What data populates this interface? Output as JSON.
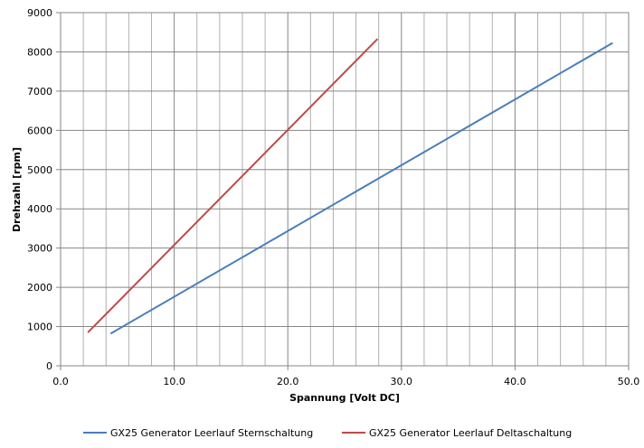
{
  "chart_data": {
    "type": "line",
    "title": "",
    "xlabel": "Spannung  [Volt DC]",
    "ylabel": "Drehzahl [rpm]",
    "xlim": [
      0,
      50
    ],
    "ylim": [
      0,
      9000
    ],
    "x_ticks": [
      "0.0",
      "10.0",
      "20.0",
      "30.0",
      "40.0",
      "50.0"
    ],
    "y_ticks": [
      "0",
      "1000",
      "2000",
      "3000",
      "4000",
      "5000",
      "6000",
      "7000",
      "8000",
      "9000"
    ],
    "x_minor_step": 2,
    "grid": true,
    "legend_position": "bottom",
    "series": [
      {
        "name": "GX25 Generator Leerlauf Sternschaltung",
        "color": "#4a7ebb",
        "x": [
          4.4,
          48.6
        ],
        "y": [
          820,
          8230
        ]
      },
      {
        "name": "GX25 Generator Leerlauf Deltaschaltung",
        "color": "#be4b48",
        "x": [
          2.4,
          27.9
        ],
        "y": [
          850,
          8330
        ]
      }
    ]
  }
}
